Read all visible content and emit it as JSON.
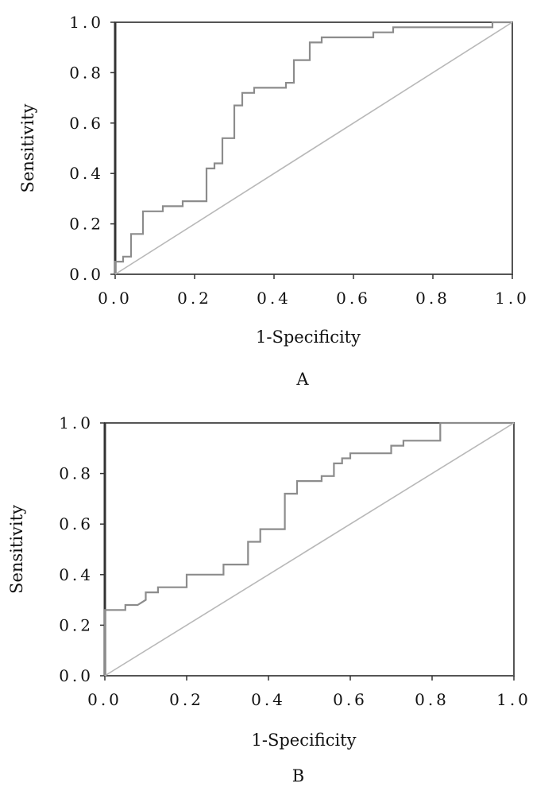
{
  "chart_data": [
    {
      "type": "line",
      "panel_label": "A",
      "title": "",
      "xlabel": "1-Specificity",
      "ylabel": "Sensitivity",
      "xlim": [
        0,
        1
      ],
      "ylim": [
        0,
        1
      ],
      "xticks": [
        "0.0",
        "0.2",
        "0.4",
        "0.6",
        "0.8",
        "1.0"
      ],
      "yticks": [
        "0.0",
        "0.2",
        "0.4",
        "0.6",
        "0.8",
        "1.0"
      ],
      "grid": false,
      "colors": {
        "roc": "#8c8c8c",
        "reference": "#b8b8b8",
        "axis": "#555555"
      },
      "series": [
        {
          "name": "ROC curve",
          "x": [
            0.0,
            0.0,
            0.02,
            0.02,
            0.04,
            0.04,
            0.05,
            0.05,
            0.07,
            0.07,
            0.12,
            0.12,
            0.17,
            0.17,
            0.23,
            0.23,
            0.25,
            0.25,
            0.27,
            0.27,
            0.28,
            0.28,
            0.3,
            0.3,
            0.32,
            0.32,
            0.35,
            0.35,
            0.43,
            0.43,
            0.45,
            0.45,
            0.49,
            0.49,
            0.52,
            0.52,
            0.65,
            0.65,
            0.7,
            0.7,
            0.95,
            0.95,
            1.0
          ],
          "y": [
            0.0,
            0.05,
            0.05,
            0.07,
            0.07,
            0.16,
            0.16,
            0.16,
            0.16,
            0.25,
            0.25,
            0.27,
            0.27,
            0.29,
            0.29,
            0.42,
            0.42,
            0.44,
            0.44,
            0.54,
            0.54,
            0.54,
            0.54,
            0.67,
            0.67,
            0.72,
            0.72,
            0.74,
            0.74,
            0.76,
            0.76,
            0.85,
            0.85,
            0.92,
            0.92,
            0.94,
            0.94,
            0.96,
            0.96,
            0.98,
            0.98,
            1.0,
            1.0
          ]
        },
        {
          "name": "Reference line",
          "x": [
            0,
            1
          ],
          "y": [
            0,
            1
          ]
        }
      ]
    },
    {
      "type": "line",
      "panel_label": "B",
      "title": "",
      "xlabel": "1-Specificity",
      "ylabel": "Sensitivity",
      "xlim": [
        0,
        1
      ],
      "ylim": [
        0,
        1
      ],
      "xticks": [
        "0.0",
        "0.2",
        "0.4",
        "0.6",
        "0.8",
        "1.0"
      ],
      "yticks": [
        "0.0",
        "0.2",
        "0.4",
        "0.6",
        "0.8",
        "1.0"
      ],
      "grid": false,
      "colors": {
        "roc": "#8c8c8c",
        "reference": "#b8b8b8",
        "axis": "#555555"
      },
      "series": [
        {
          "name": "ROC curve",
          "x": [
            0.0,
            0.0,
            0.05,
            0.05,
            0.08,
            0.1,
            0.1,
            0.13,
            0.13,
            0.2,
            0.2,
            0.29,
            0.29,
            0.35,
            0.35,
            0.38,
            0.38,
            0.44,
            0.44,
            0.47,
            0.47,
            0.53,
            0.53,
            0.56,
            0.56,
            0.58,
            0.58,
            0.6,
            0.6,
            0.7,
            0.7,
            0.73,
            0.73,
            0.82,
            0.82,
            1.0
          ],
          "y": [
            0.0,
            0.26,
            0.26,
            0.28,
            0.28,
            0.3,
            0.33,
            0.33,
            0.35,
            0.35,
            0.4,
            0.4,
            0.44,
            0.44,
            0.53,
            0.53,
            0.58,
            0.58,
            0.72,
            0.72,
            0.77,
            0.77,
            0.79,
            0.79,
            0.84,
            0.84,
            0.86,
            0.86,
            0.88,
            0.88,
            0.91,
            0.91,
            0.93,
            0.93,
            1.0,
            1.0
          ]
        },
        {
          "name": "Reference line",
          "x": [
            0,
            1
          ],
          "y": [
            0,
            1
          ]
        }
      ]
    }
  ]
}
